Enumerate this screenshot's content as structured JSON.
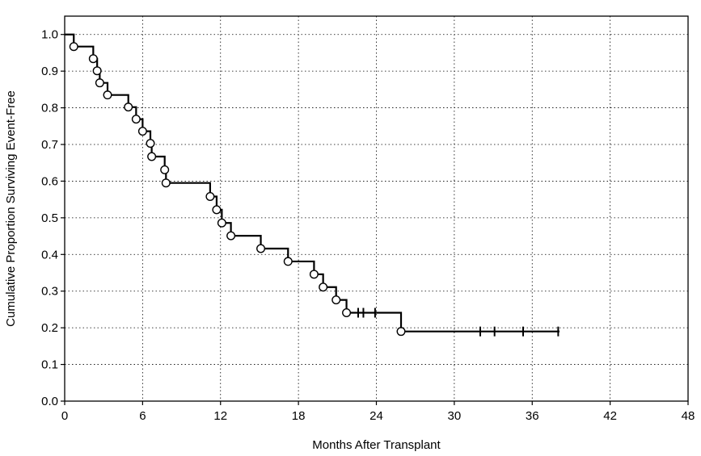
{
  "chart_data": {
    "type": "line",
    "subtype": "kaplan-meier-step",
    "xlabel": "Months After Transplant",
    "ylabel": "Cumulative Proportion Surviving Event-Free",
    "xlim": [
      0,
      48
    ],
    "ylim": [
      0,
      1.05
    ],
    "x_ticks": [
      0,
      6,
      12,
      18,
      24,
      30,
      36,
      42,
      48
    ],
    "y_ticks": [
      0.0,
      0.1,
      0.2,
      0.3,
      0.4,
      0.5,
      0.6,
      0.7,
      0.8,
      0.9,
      1.0
    ],
    "x_tick_labels": [
      "0",
      "6",
      "12",
      "18",
      "24",
      "30",
      "36",
      "42",
      "48"
    ],
    "y_tick_labels": [
      "0.0",
      "0.1",
      "0.2",
      "0.3",
      "0.4",
      "0.5",
      "0.6",
      "0.7",
      "0.8",
      "0.9",
      "1.0"
    ],
    "grid": true,
    "grid_style": "dotted",
    "colors": {
      "line": "#000000",
      "grid": "#000000",
      "marker_fill": "#ffffff"
    },
    "steps": [
      [
        0,
        1.0
      ],
      [
        0.7,
        0.967
      ],
      [
        2.2,
        0.934
      ],
      [
        2.5,
        0.901
      ],
      [
        2.7,
        0.868
      ],
      [
        3.3,
        0.835
      ],
      [
        4.9,
        0.802
      ],
      [
        5.5,
        0.769
      ],
      [
        6.0,
        0.736
      ],
      [
        6.6,
        0.703
      ],
      [
        6.7,
        0.667
      ],
      [
        7.7,
        0.631
      ],
      [
        7.8,
        0.595
      ],
      [
        11.2,
        0.558
      ],
      [
        11.7,
        0.522
      ],
      [
        12.1,
        0.486
      ],
      [
        12.8,
        0.451
      ],
      [
        15.1,
        0.416
      ],
      [
        17.2,
        0.381
      ],
      [
        19.2,
        0.346
      ],
      [
        19.9,
        0.311
      ],
      [
        20.9,
        0.276
      ],
      [
        21.7,
        0.241
      ],
      [
        25.9,
        0.19
      ]
    ],
    "line_end_x": 38.1,
    "events": [
      [
        0.7,
        0.967
      ],
      [
        2.2,
        0.934
      ],
      [
        2.5,
        0.901
      ],
      [
        2.7,
        0.868
      ],
      [
        3.3,
        0.835
      ],
      [
        4.9,
        0.802
      ],
      [
        5.5,
        0.769
      ],
      [
        6.0,
        0.736
      ],
      [
        6.6,
        0.703
      ],
      [
        6.7,
        0.667
      ],
      [
        7.7,
        0.631
      ],
      [
        7.8,
        0.595
      ],
      [
        11.2,
        0.558
      ],
      [
        11.7,
        0.522
      ],
      [
        12.1,
        0.486
      ],
      [
        12.8,
        0.451
      ],
      [
        15.1,
        0.416
      ],
      [
        17.2,
        0.381
      ],
      [
        19.2,
        0.346
      ],
      [
        19.9,
        0.311
      ],
      [
        20.9,
        0.276
      ],
      [
        21.7,
        0.241
      ],
      [
        25.9,
        0.19
      ]
    ],
    "censored": [
      [
        22.6,
        0.241
      ],
      [
        23.0,
        0.241
      ],
      [
        23.9,
        0.241
      ],
      [
        32.0,
        0.19
      ],
      [
        33.1,
        0.19
      ],
      [
        35.3,
        0.19
      ],
      [
        38.0,
        0.19
      ]
    ]
  }
}
